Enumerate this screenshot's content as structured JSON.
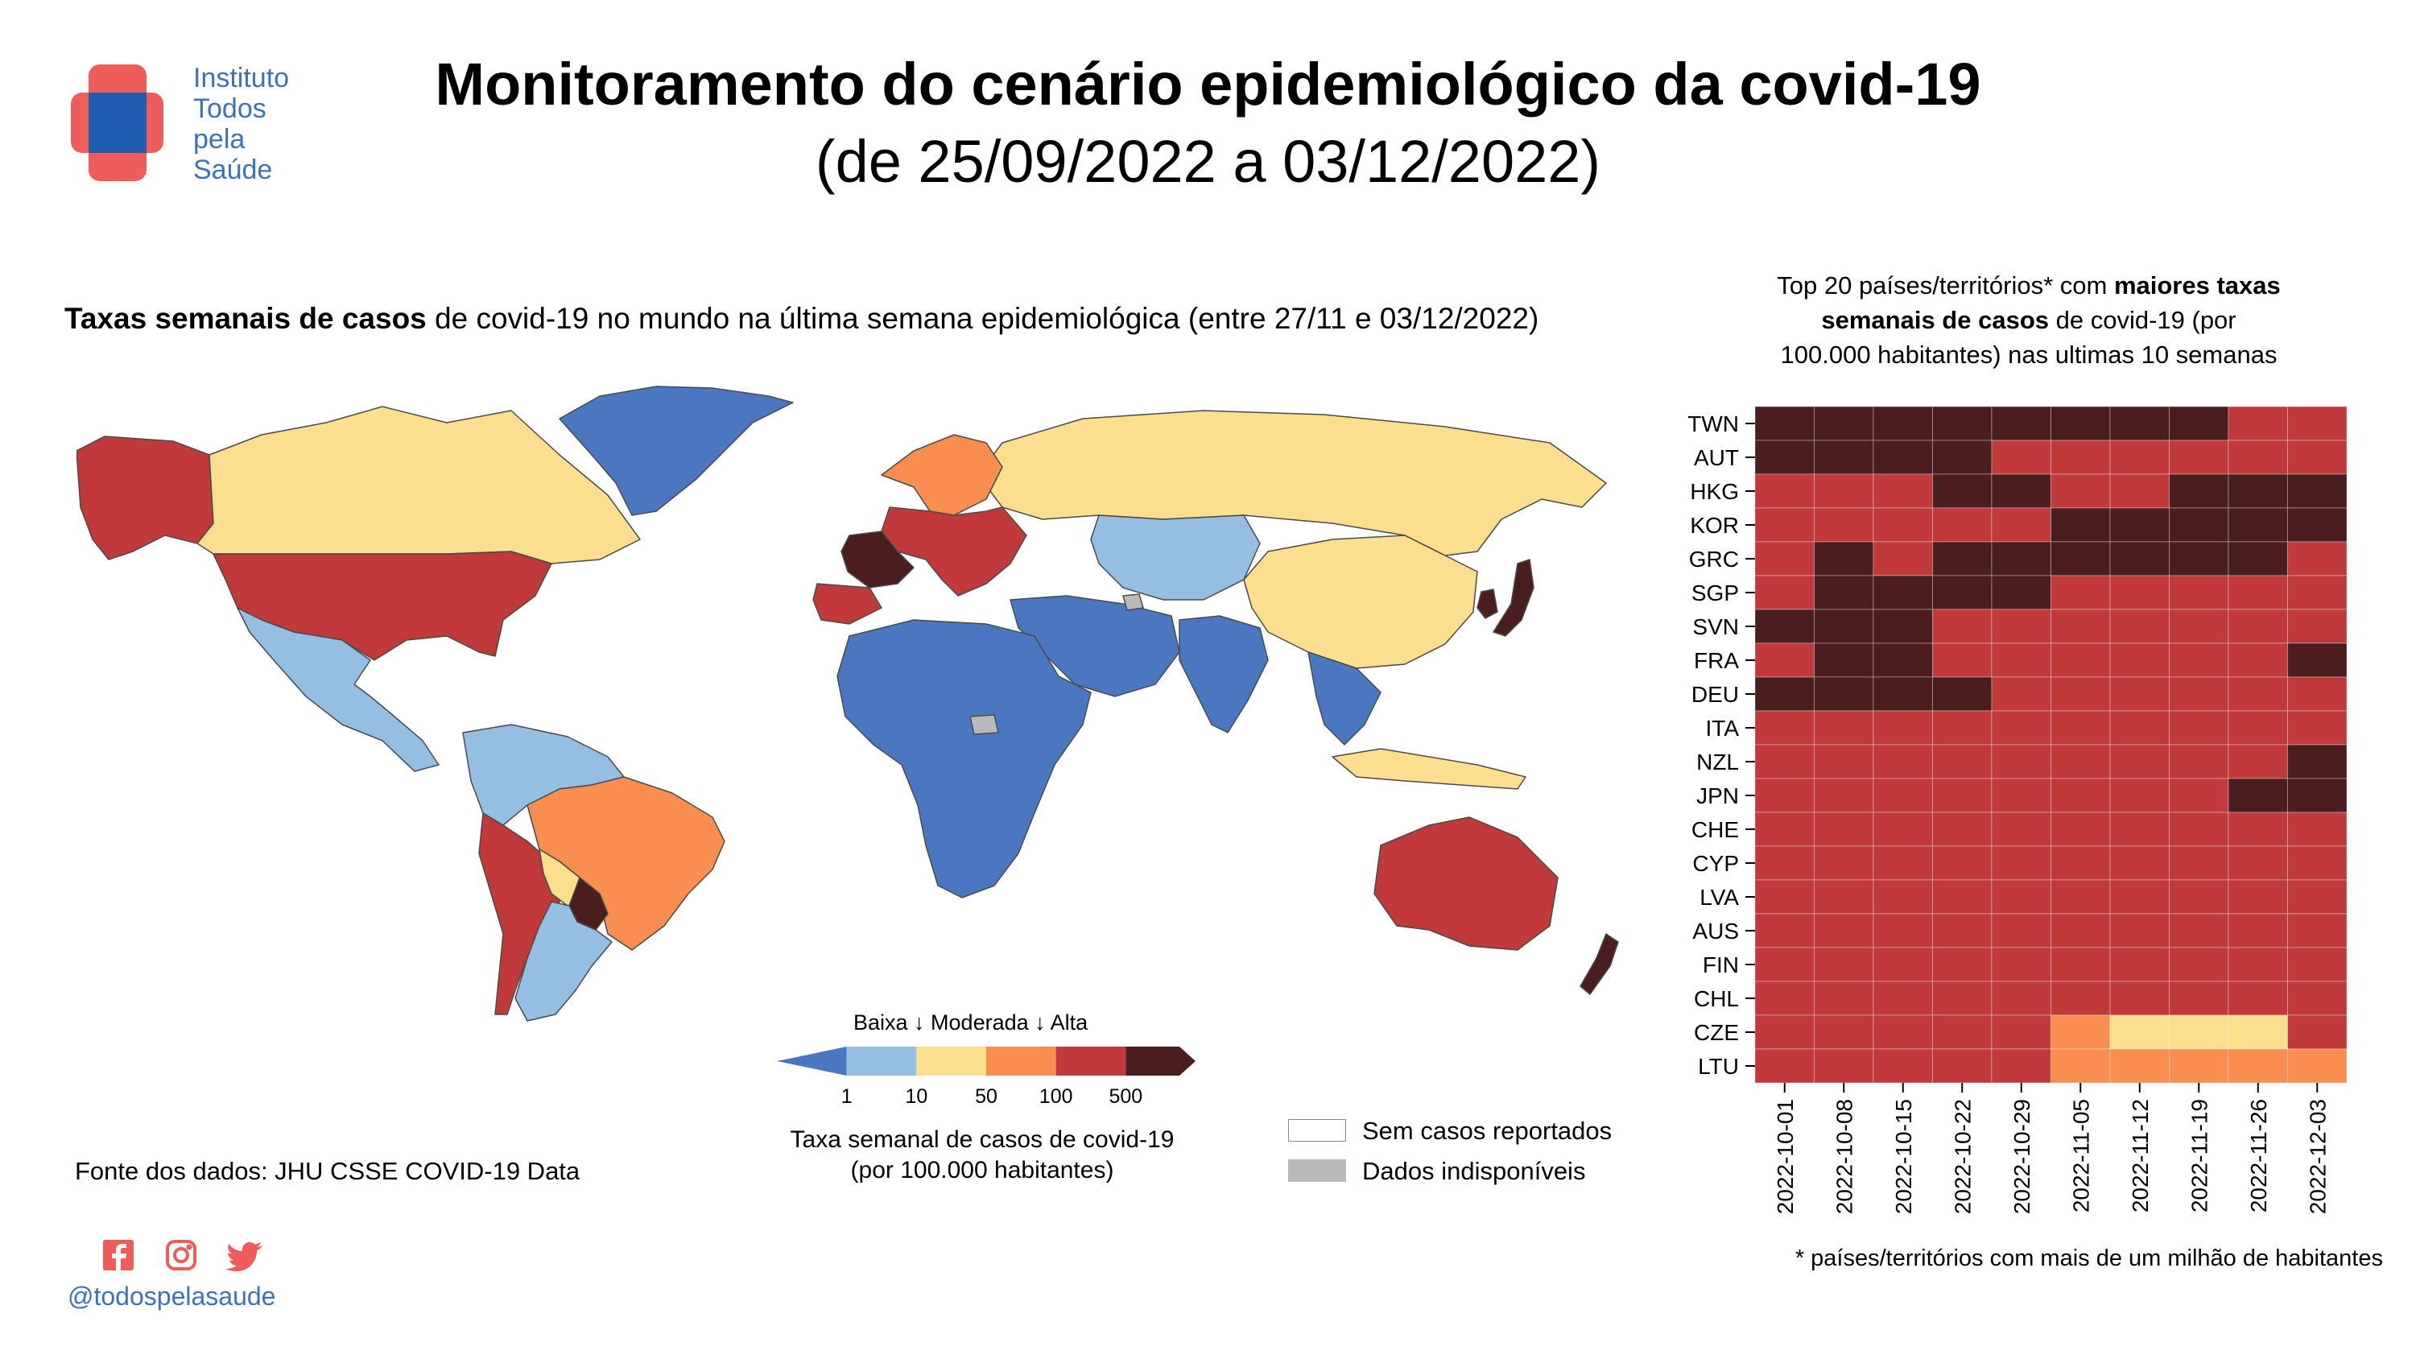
{
  "header": {
    "logo_lines": [
      "Instituto",
      "Todos",
      "pela",
      "Saúde"
    ],
    "title": "Monitoramento do cenário epidemiológico da covid-19",
    "subtitle": "(de 25/09/2022 a 03/12/2022)"
  },
  "map": {
    "heading_bold": "Taxas semanais de casos",
    "heading_rest": " de covid-19 no mundo na última semana epidemiológica (entre 27/11 e 03/12/2022)",
    "legend": {
      "scale_label": "Baixa ↓ Moderada ↓ Alta",
      "ticks": [
        "1",
        "10",
        "50",
        "100",
        "500"
      ],
      "colors": [
        "#4a77c0",
        "#94bfe3",
        "#fbdf8e",
        "#f88e50",
        "#c0393b",
        "#4a1e1e"
      ],
      "caption_line1": "Taxa semanal de casos de covid-19",
      "caption_line2": "(por 100.000 habitantes)",
      "no_cases_label": "Sem casos reportados",
      "no_data_label": "Dados indisponíveis",
      "no_data_color": "#b9b9b9"
    },
    "regions": [
      {
        "name": "Alaska",
        "level": 5
      },
      {
        "name": "Canadá",
        "level": 3
      },
      {
        "name": "Estados Unidos",
        "level": 5
      },
      {
        "name": "México",
        "level": 2
      },
      {
        "name": "Groenlândia",
        "level": 1
      },
      {
        "name": "Brasil",
        "level": 4
      },
      {
        "name": "Argentina",
        "level": 2
      },
      {
        "name": "Peru / Chile",
        "level": 5
      },
      {
        "name": "Colômbia / Equador",
        "level": 2
      },
      {
        "name": "Paraguai",
        "level": 6
      },
      {
        "name": "Bolívia",
        "level": 3
      },
      {
        "name": "França",
        "level": 6
      },
      {
        "name": "Europa Central",
        "level": 5
      },
      {
        "name": "Escandinávia",
        "level": 4
      },
      {
        "name": "Rússia",
        "level": 3
      },
      {
        "name": "Cazaquistão / Ásia Central",
        "level": 2
      },
      {
        "name": "África",
        "level": 1
      },
      {
        "name": "Oriente Médio",
        "level": 1
      },
      {
        "name": "Índia",
        "level": 1
      },
      {
        "name": "China / Mongólia",
        "level": 3
      },
      {
        "name": "Japão",
        "level": 6
      },
      {
        "name": "Coreia do Sul",
        "level": 6
      },
      {
        "name": "Sudeste Asiático",
        "level": 1
      },
      {
        "name": "Indonésia",
        "level": 3
      },
      {
        "name": "Austrália",
        "level": 5
      },
      {
        "name": "Nova Zelândia",
        "level": 6
      }
    ]
  },
  "source": "Fonte dos dados: JHU CSSE COVID-19 Data",
  "social": {
    "icons": [
      "facebook-icon",
      "instagram-icon",
      "twitter-icon"
    ],
    "handle": "@todospelasaude"
  },
  "chart_data": {
    "type": "heatmap",
    "title_lines": [
      [
        {
          "text": "Top 20 países/territórios* com ",
          "bold": false
        },
        {
          "text": "maiores taxas",
          "bold": true
        }
      ],
      [
        {
          "text": "semanais de casos",
          "bold": true
        },
        {
          "text": " de covid-19 (por",
          "bold": false
        }
      ],
      [
        {
          "text": "100.000 habitantes) nas ultimas 10 semanas",
          "bold": false
        }
      ]
    ],
    "x": [
      "2022-10-01",
      "2022-10-08",
      "2022-10-15",
      "2022-10-22",
      "2022-10-29",
      "2022-11-05",
      "2022-11-12",
      "2022-11-19",
      "2022-11-26",
      "2022-12-03"
    ],
    "y": [
      "TWN",
      "AUT",
      "HKG",
      "KOR",
      "GRC",
      "SGP",
      "SVN",
      "FRA",
      "DEU",
      "ITA",
      "NZL",
      "JPN",
      "CHE",
      "CYP",
      "LVA",
      "AUS",
      "FIN",
      "CHL",
      "CZE",
      "LTU"
    ],
    "color_scale": {
      "3": "#fbdf8e",
      "4": "#f88e50",
      "5": "#c0393b",
      "6": "#4a1e1e"
    },
    "levels": [
      [
        6,
        6,
        6,
        6,
        6,
        6,
        6,
        6,
        5,
        5
      ],
      [
        6,
        6,
        6,
        6,
        5,
        5,
        5,
        5,
        5,
        5
      ],
      [
        5,
        5,
        5,
        6,
        6,
        5,
        5,
        6,
        6,
        6
      ],
      [
        5,
        5,
        5,
        5,
        5,
        6,
        6,
        6,
        6,
        6
      ],
      [
        5,
        6,
        5,
        6,
        6,
        6,
        6,
        6,
        6,
        5
      ],
      [
        5,
        6,
        6,
        6,
        6,
        5,
        5,
        5,
        5,
        5
      ],
      [
        6,
        6,
        6,
        5,
        5,
        5,
        5,
        5,
        5,
        5
      ],
      [
        5,
        6,
        6,
        5,
        5,
        5,
        5,
        5,
        5,
        6
      ],
      [
        6,
        6,
        6,
        6,
        5,
        5,
        5,
        5,
        5,
        5
      ],
      [
        5,
        5,
        5,
        5,
        5,
        5,
        5,
        5,
        5,
        5
      ],
      [
        5,
        5,
        5,
        5,
        5,
        5,
        5,
        5,
        5,
        6
      ],
      [
        5,
        5,
        5,
        5,
        5,
        5,
        5,
        5,
        6,
        6
      ],
      [
        5,
        5,
        5,
        5,
        5,
        5,
        5,
        5,
        5,
        5
      ],
      [
        5,
        5,
        5,
        5,
        5,
        5,
        5,
        5,
        5,
        5
      ],
      [
        5,
        5,
        5,
        5,
        5,
        5,
        5,
        5,
        5,
        5
      ],
      [
        5,
        5,
        5,
        5,
        5,
        5,
        5,
        5,
        5,
        5
      ],
      [
        5,
        5,
        5,
        5,
        5,
        5,
        5,
        5,
        5,
        5
      ],
      [
        5,
        5,
        5,
        5,
        5,
        5,
        5,
        5,
        5,
        5
      ],
      [
        5,
        5,
        5,
        5,
        5,
        4,
        3,
        3,
        3,
        5
      ],
      [
        5,
        5,
        5,
        5,
        5,
        4,
        4,
        4,
        4,
        4
      ]
    ],
    "footnote": "* países/territórios com mais de um milhão de habitantes"
  }
}
